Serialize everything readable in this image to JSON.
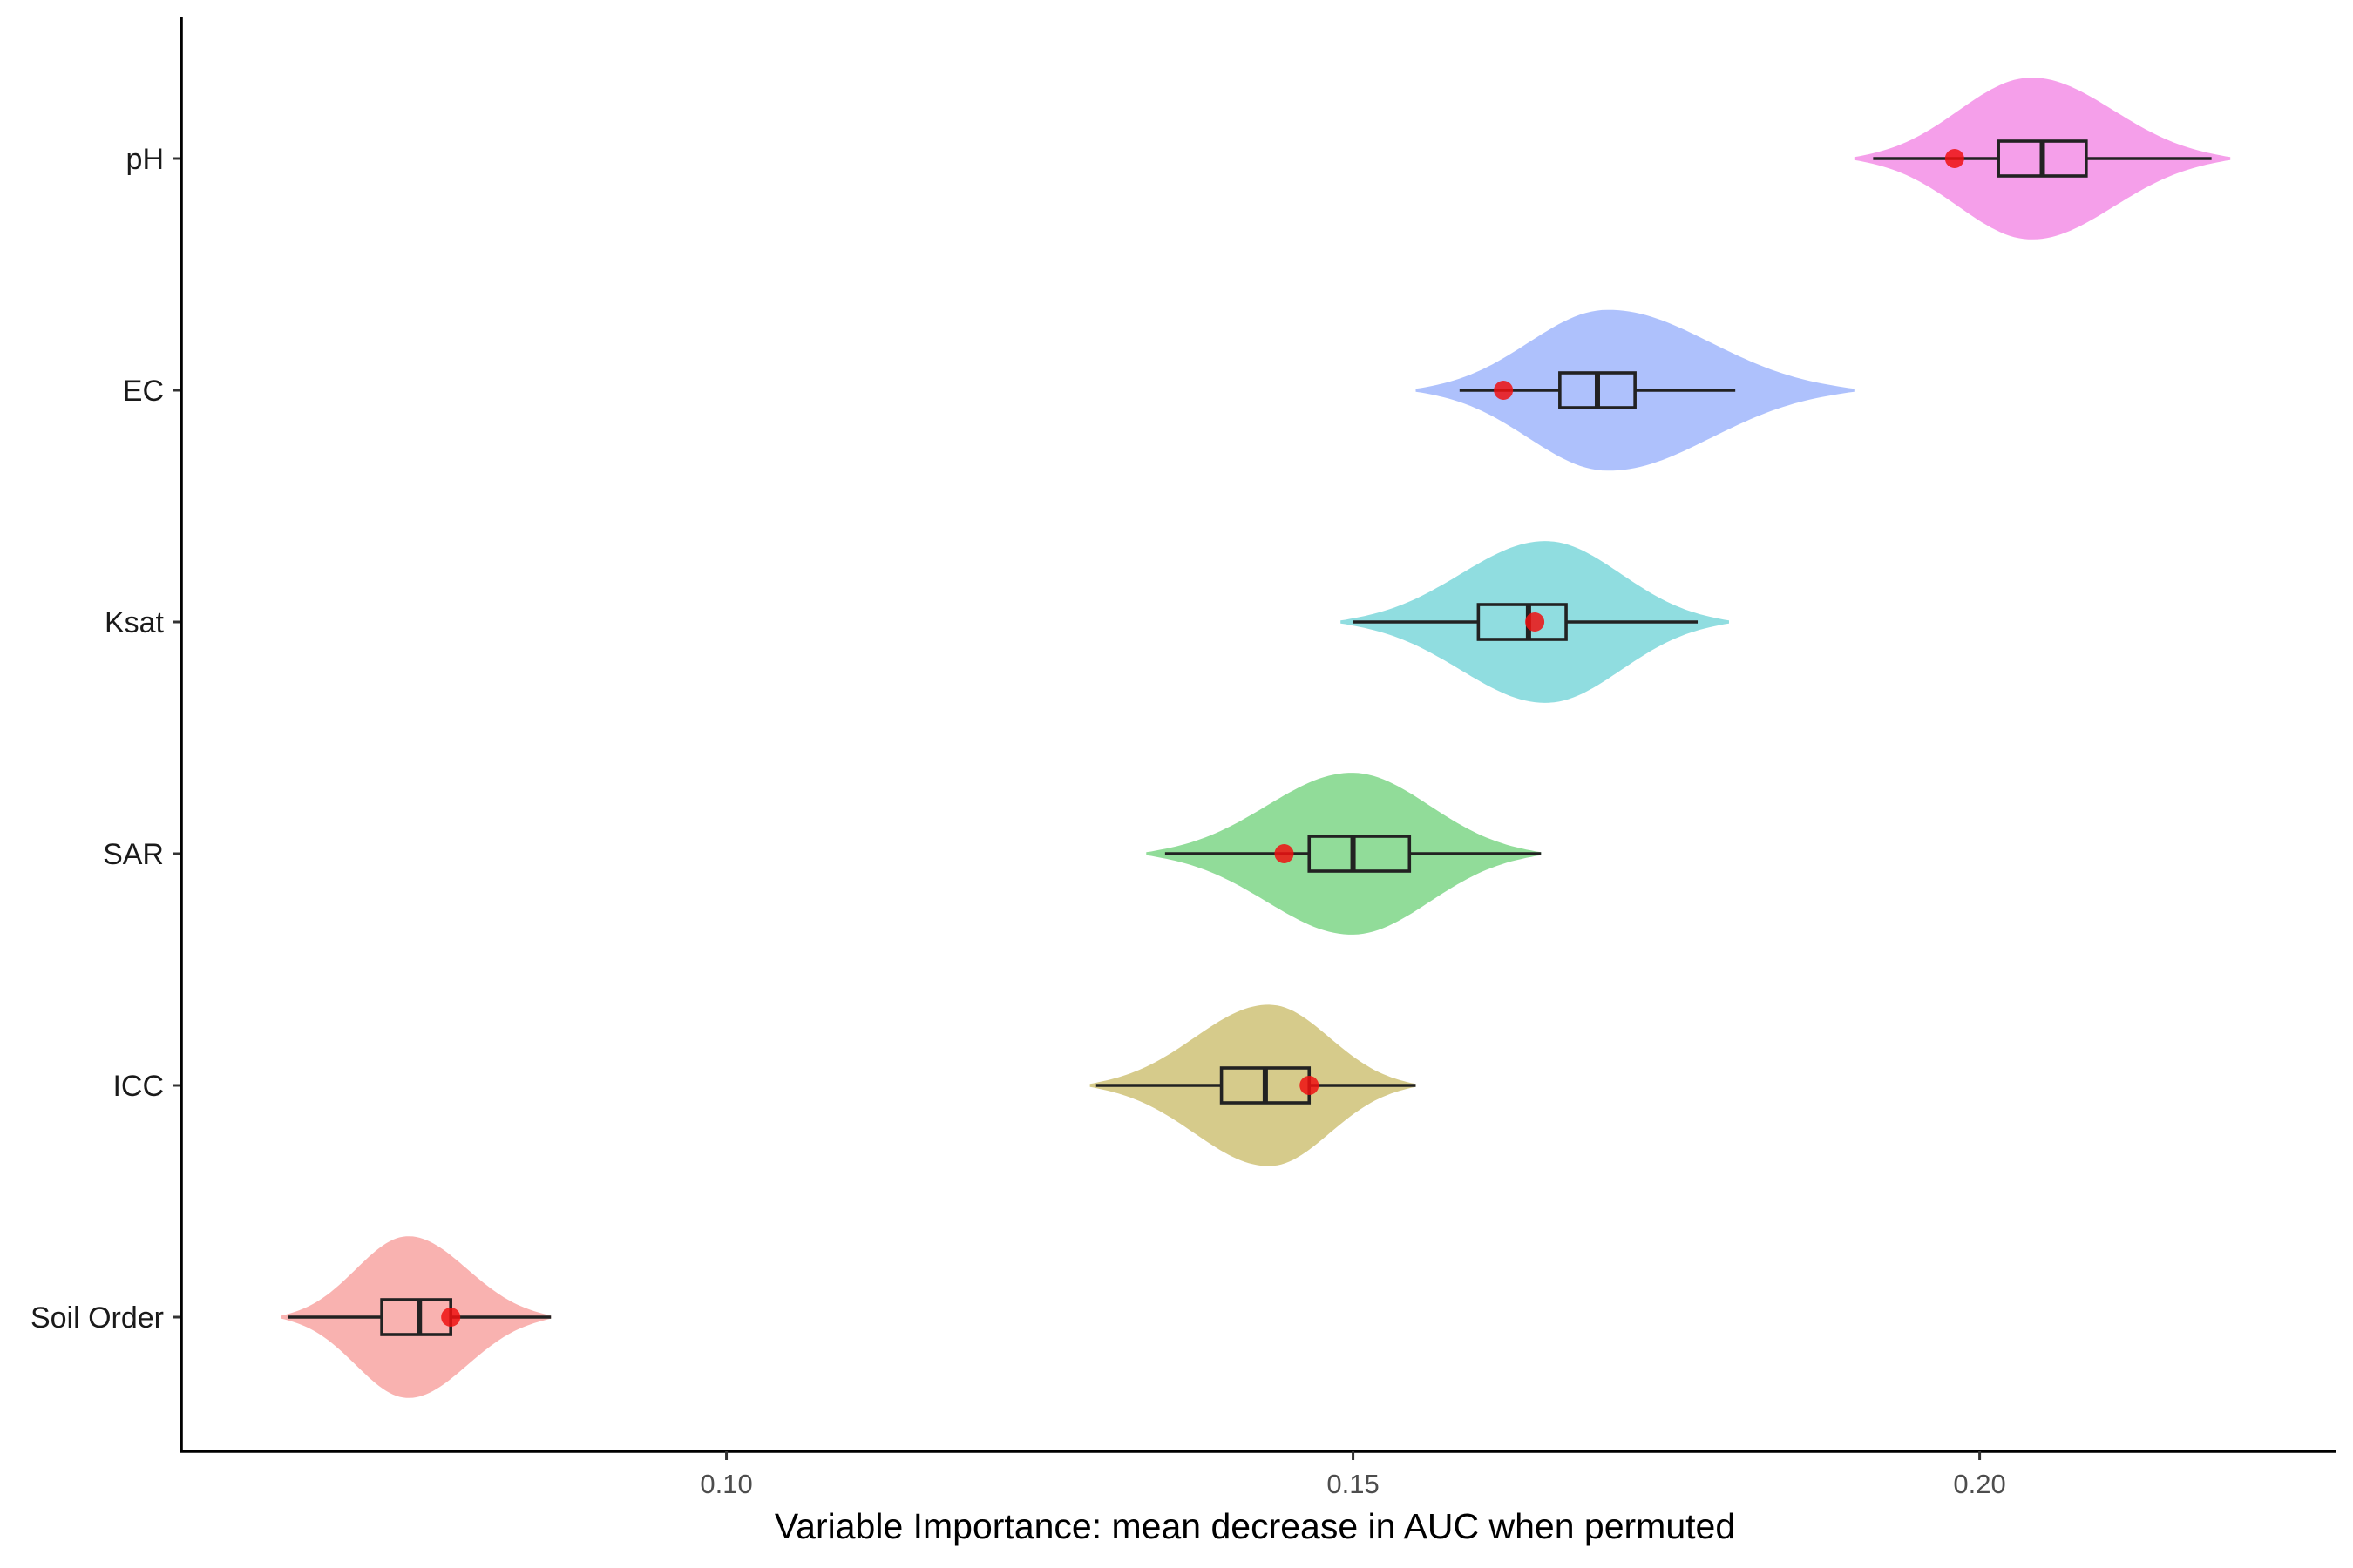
{
  "chart_data": {
    "type": "violin",
    "title": "",
    "xlabel": "Variable Importance: mean decrease in AUC when permuted",
    "ylabel": "",
    "xlim": [
      0.0565,
      0.2284
    ],
    "x_ticks": [
      0.1,
      0.15,
      0.2
    ],
    "x_tick_labels": [
      "0.10",
      "0.15",
      "0.20"
    ],
    "grid": false,
    "legend": "none",
    "categories": [
      "pH",
      "EC",
      "Ksat",
      "SAR",
      "ICC",
      "Soil Order"
    ],
    "series": [
      {
        "category": "pH",
        "color": "#f38ee6",
        "violin_range": [
          0.19,
          0.22
        ],
        "violin_peak": 0.204,
        "whisker_low": 0.1915,
        "q1": 0.2015,
        "median": 0.205,
        "q3": 0.2085,
        "whisker_high": 0.2185,
        "point": 0.198
      },
      {
        "category": "EC",
        "color": "#a0b6fb",
        "violin_range": [
          0.155,
          0.19
        ],
        "violin_peak": 0.17,
        "whisker_low": 0.1585,
        "q1": 0.1665,
        "median": 0.1695,
        "q3": 0.1725,
        "whisker_high": 0.1805,
        "point": 0.162
      },
      {
        "category": "Ksat",
        "color": "#7dd7da",
        "violin_range": [
          0.149,
          0.18
        ],
        "violin_peak": 0.1655,
        "whisker_low": 0.15,
        "q1": 0.16,
        "median": 0.164,
        "q3": 0.167,
        "whisker_high": 0.1775,
        "point": 0.1645
      },
      {
        "category": "SAR",
        "color": "#7ed687",
        "violin_range": [
          0.1335,
          0.165
        ],
        "violin_peak": 0.15,
        "whisker_low": 0.135,
        "q1": 0.1465,
        "median": 0.15,
        "q3": 0.1545,
        "whisker_high": 0.165,
        "point": 0.1445
      },
      {
        "category": "ICC",
        "color": "#cfc277",
        "violin_range": [
          0.129,
          0.155
        ],
        "violin_peak": 0.1435,
        "whisker_low": 0.1295,
        "q1": 0.1395,
        "median": 0.143,
        "q3": 0.1465,
        "whisker_high": 0.155,
        "point": 0.1465
      },
      {
        "category": "Soil Order",
        "color": "#f8a5a2",
        "violin_range": [
          0.0645,
          0.086
        ],
        "violin_peak": 0.0745,
        "whisker_low": 0.065,
        "q1": 0.0725,
        "median": 0.0755,
        "q3": 0.078,
        "whisker_high": 0.086,
        "point": 0.078
      }
    ]
  }
}
